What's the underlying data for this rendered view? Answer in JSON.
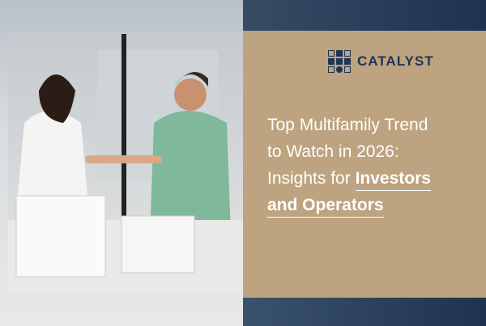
{
  "brand": {
    "name": "CATALYST",
    "logo_icon": "grid-squares-logo-icon",
    "color": "#1c3556"
  },
  "headline": {
    "line1": "Top Multifamily Trend",
    "line2": "to Watch in 2026:",
    "line3_prefix": "Insights for ",
    "line3_bold": "Investors",
    "line4_bold": "and Operators"
  },
  "colors": {
    "panel": "#bda37f",
    "navy": "#1d3350",
    "text": "#ffffff"
  }
}
